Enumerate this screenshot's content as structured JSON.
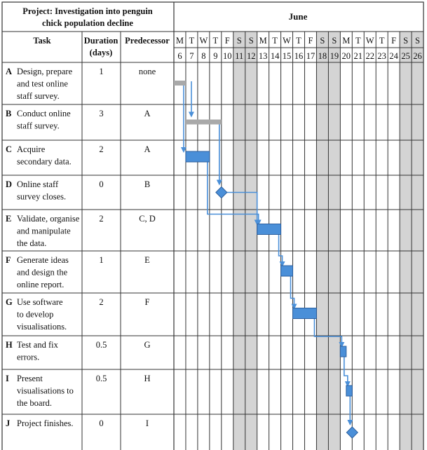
{
  "header": {
    "project_title_line1": "Project: Investigation into penguin",
    "project_title_line2": "chick population decline",
    "month": "June",
    "col_task": "Task",
    "col_duration_line1": "Duration",
    "col_duration_line2": "(days)",
    "col_predecessor": "Predecessor"
  },
  "colors": {
    "bar": "#4a8fd8",
    "bar_outline": "#2c5f9e",
    "arrow": "#4a8fd8",
    "completed_bar": "#a9a9a9",
    "weekend_shade": "#d4d4d4",
    "grid": "#333333"
  },
  "chart_data": {
    "type": "gantt",
    "days": [
      {
        "letter": "M",
        "date": "6",
        "weekend": false
      },
      {
        "letter": "T",
        "date": "7",
        "weekend": false
      },
      {
        "letter": "W",
        "date": "8",
        "weekend": false
      },
      {
        "letter": "T",
        "date": "9",
        "weekend": false
      },
      {
        "letter": "F",
        "date": "10",
        "weekend": false
      },
      {
        "letter": "S",
        "date": "11",
        "weekend": true
      },
      {
        "letter": "S",
        "date": "12",
        "weekend": true
      },
      {
        "letter": "M",
        "date": "13",
        "weekend": false
      },
      {
        "letter": "T",
        "date": "14",
        "weekend": false
      },
      {
        "letter": "W",
        "date": "15",
        "weekend": false
      },
      {
        "letter": "T",
        "date": "16",
        "weekend": false
      },
      {
        "letter": "F",
        "date": "17",
        "weekend": false
      },
      {
        "letter": "S",
        "date": "18",
        "weekend": true
      },
      {
        "letter": "S",
        "date": "19",
        "weekend": true
      },
      {
        "letter": "M",
        "date": "20",
        "weekend": false
      },
      {
        "letter": "T",
        "date": "21",
        "weekend": false
      },
      {
        "letter": "W",
        "date": "22",
        "weekend": false
      },
      {
        "letter": "T",
        "date": "23",
        "weekend": false
      },
      {
        "letter": "F",
        "date": "24",
        "weekend": false
      },
      {
        "letter": "S",
        "date": "25",
        "weekend": true
      },
      {
        "letter": "S",
        "date": "26",
        "weekend": true
      }
    ],
    "tasks": [
      {
        "id": "A",
        "lines": [
          "Design, prepare",
          "and test online",
          "staff survey."
        ],
        "duration": "1",
        "predecessor": "none",
        "start": 6,
        "end": 7,
        "kind": "completed"
      },
      {
        "id": "B",
        "lines": [
          "Conduct online",
          "staff survey."
        ],
        "duration": "3",
        "predecessor": "A",
        "start": 7,
        "end": 10,
        "kind": "completed"
      },
      {
        "id": "C",
        "lines": [
          "Acquire",
          "secondary data."
        ],
        "duration": "2",
        "predecessor": "A",
        "start": 7,
        "end": 9,
        "kind": "bar"
      },
      {
        "id": "D",
        "lines": [
          "Online staff",
          "survey closes."
        ],
        "duration": "0",
        "predecessor": "B",
        "start": 10,
        "end": 10,
        "kind": "milestone"
      },
      {
        "id": "E",
        "lines": [
          "Validate, organise",
          "and manipulate",
          "the data."
        ],
        "duration": "2",
        "predecessor": "C, D",
        "start": 13,
        "end": 15,
        "kind": "bar"
      },
      {
        "id": "F",
        "lines": [
          "Generate ideas",
          "and design the",
          "online report."
        ],
        "duration": "1",
        "predecessor": "E",
        "start": 15,
        "end": 16,
        "kind": "bar"
      },
      {
        "id": "G",
        "lines": [
          "Use software",
          "to develop",
          "visualisations."
        ],
        "duration": "2",
        "predecessor": "F",
        "start": 16,
        "end": 18,
        "kind": "bar"
      },
      {
        "id": "H",
        "lines": [
          "Test and fix",
          "errors."
        ],
        "duration": "0.5",
        "predecessor": "G",
        "start": 20,
        "end": 20.5,
        "kind": "bar"
      },
      {
        "id": "I",
        "lines": [
          "Present",
          "visualisations to",
          "the board."
        ],
        "duration": "0.5",
        "predecessor": "H",
        "start": 20.5,
        "end": 21,
        "kind": "bar"
      },
      {
        "id": "J",
        "lines": [
          "Project finishes."
        ],
        "duration": "0",
        "predecessor": "I",
        "start": 21,
        "end": 21,
        "kind": "milestone"
      }
    ],
    "dependencies": [
      {
        "from": "A",
        "to": "B"
      },
      {
        "from": "A",
        "to": "C"
      },
      {
        "from": "B",
        "to": "D"
      },
      {
        "from": "C",
        "to": "E"
      },
      {
        "from": "D",
        "to": "E"
      },
      {
        "from": "E",
        "to": "F"
      },
      {
        "from": "F",
        "to": "G"
      },
      {
        "from": "G",
        "to": "H"
      },
      {
        "from": "H",
        "to": "I"
      },
      {
        "from": "I",
        "to": "J"
      }
    ]
  }
}
